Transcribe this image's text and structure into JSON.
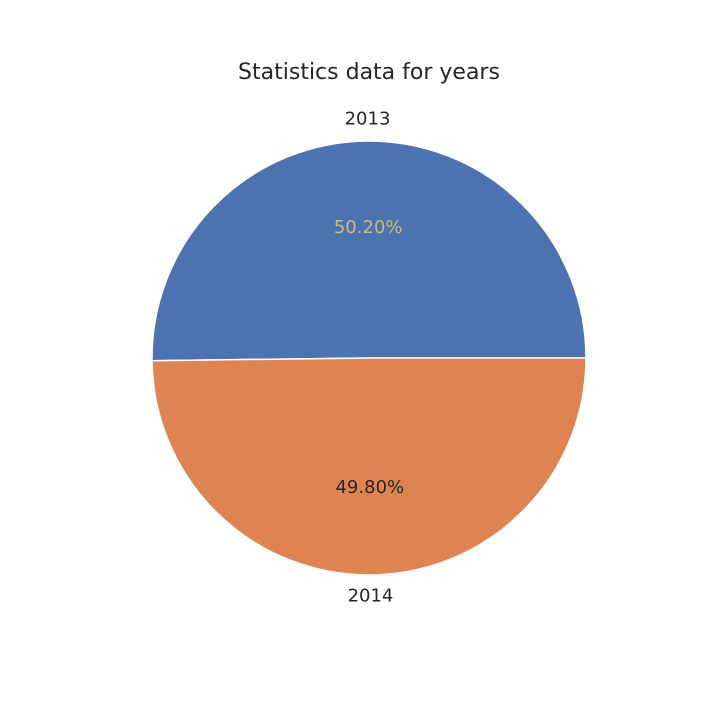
{
  "chart_data": {
    "type": "pie",
    "title": "Statistics data for years",
    "slices": [
      {
        "label": "2013",
        "value": 50.2,
        "pct_text": "50.20%",
        "color": "#4c72b0",
        "pct_color": "#ccb974"
      },
      {
        "label": "2014",
        "value": 49.8,
        "pct_text": "49.80%",
        "color": "#dd8452",
        "pct_color": "#262626"
      }
    ],
    "start_angle_deg": 0,
    "direction": "counterclockwise",
    "legend": "none"
  }
}
